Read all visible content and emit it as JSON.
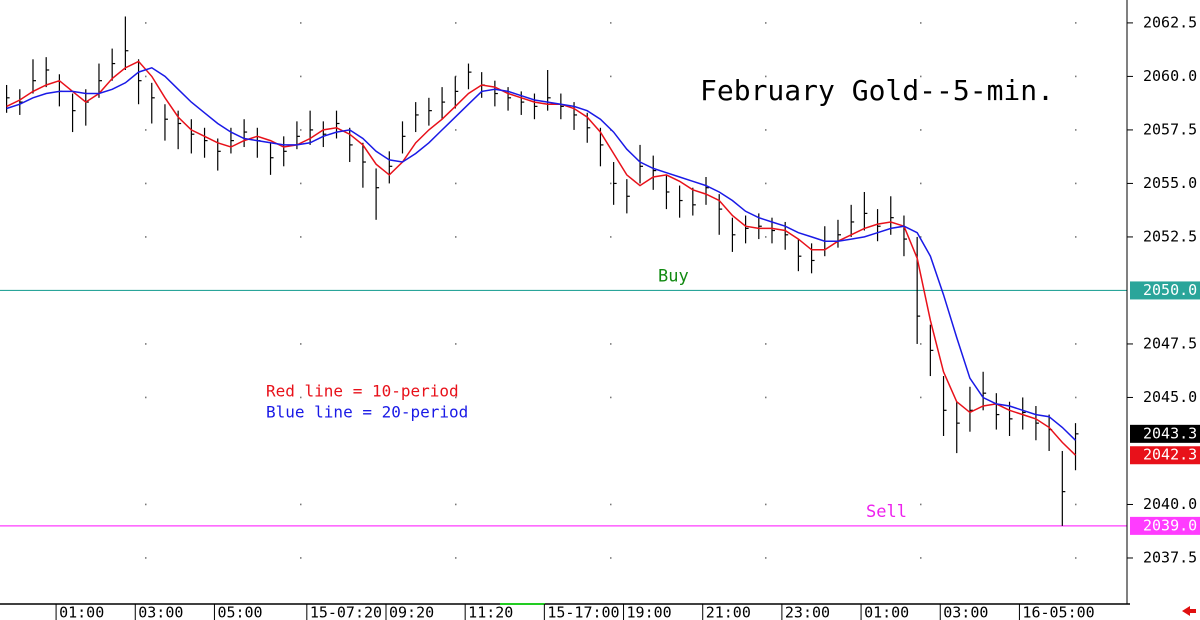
{
  "chart_data": {
    "type": "ohlc",
    "title": "February Gold--5-min.",
    "xlim": [
      0,
      341
    ],
    "ylim": [
      2035.35,
      2063.57
    ],
    "grid": true,
    "bar_color": "#000000",
    "xticks": [
      {
        "value": 17,
        "label": "01:00"
      },
      {
        "value": 41,
        "label": "03:00"
      },
      {
        "value": 65,
        "label": "05:00"
      },
      {
        "value": 93,
        "label": "15-07:20"
      },
      {
        "value": 117,
        "label": "09:20"
      },
      {
        "value": 141,
        "label": "11:20"
      },
      {
        "value": 165,
        "label": "15-17:00"
      },
      {
        "value": 189,
        "label": "19:00"
      },
      {
        "value": 213,
        "label": "21:00"
      },
      {
        "value": 237,
        "label": "23:00"
      },
      {
        "value": 261,
        "label": "01:00"
      },
      {
        "value": 285,
        "label": "03:00"
      },
      {
        "value": 309,
        "label": "16-05:00"
      }
    ],
    "yticks": [
      2062.5,
      {
        "value": 2060,
        "label": "2060.0"
      },
      2057.5,
      {
        "value": 2055,
        "label": "2055.0"
      },
      2052.5,
      2047.5,
      {
        "value": 2045,
        "label": "2045.0"
      },
      {
        "value": 2040,
        "label": "2040.0"
      },
      2037.5
    ],
    "x": [
      2,
      6,
      10,
      14,
      18,
      22,
      26,
      30,
      34,
      38,
      42,
      46,
      50,
      54,
      58,
      62,
      66,
      70,
      74,
      78,
      82,
      86,
      90,
      94,
      98,
      102,
      106,
      110,
      114,
      118,
      122,
      126,
      130,
      134,
      138,
      142,
      146,
      150,
      154,
      158,
      162,
      166,
      170,
      174,
      178,
      182,
      186,
      190,
      194,
      198,
      202,
      206,
      210,
      214,
      218,
      222,
      226,
      230,
      234,
      238,
      242,
      246,
      250,
      254,
      258,
      262,
      266,
      270,
      274,
      278,
      282,
      286,
      290,
      294,
      298,
      302,
      306,
      310,
      314,
      318,
      322,
      326
    ],
    "high": [
      2059.6,
      2059.4,
      2060.8,
      2060.9,
      2060.1,
      2059.2,
      2059.4,
      2060.6,
      2061.3,
      2062.8,
      2060.8,
      2059.7,
      2058.7,
      2058.4,
      2058.0,
      2057.6,
      2057.1,
      2057.6,
      2058.0,
      2057.6,
      2056.9,
      2057.2,
      2057.9,
      2058.4,
      2057.9,
      2058.4,
      2057.6,
      2056.9,
      2055.7,
      2056.5,
      2057.9,
      2058.8,
      2059.0,
      2059.5,
      2060.0,
      2060.6,
      2060.2,
      2059.8,
      2059.5,
      2059.3,
      2059.2,
      2060.3,
      2059.2,
      2058.8,
      2058.3,
      2057.6,
      2056.0,
      2055.2,
      2056.8,
      2056.3,
      2055.4,
      2054.9,
      2054.8,
      2055.3,
      2054.5,
      2053.4,
      2053.5,
      2053.6,
      2053.4,
      2053.2,
      2052.4,
      2052.2,
      2053.0,
      2053.3,
      2054.0,
      2054.6,
      2053.8,
      2054.4,
      2053.5,
      2052.5,
      2048.4,
      2046.0,
      2044.8,
      2045.5,
      2046.2,
      2045.2,
      2044.8,
      2045.0,
      2044.6,
      2044.2,
      2042.5,
      2043.8
    ],
    "low": [
      2058.3,
      2058.2,
      2059.2,
      2059.5,
      2058.6,
      2057.4,
      2057.7,
      2059.0,
      2059.8,
      2060.3,
      2058.7,
      2057.8,
      2057.0,
      2056.6,
      2056.4,
      2056.2,
      2055.6,
      2056.4,
      2056.7,
      2056.2,
      2055.4,
      2055.8,
      2056.6,
      2056.8,
      2056.7,
      2057.1,
      2056.0,
      2054.8,
      2053.3,
      2055.0,
      2056.4,
      2057.4,
      2057.7,
      2058.0,
      2058.5,
      2059.4,
      2059.0,
      2058.6,
      2058.4,
      2058.2,
      2058.0,
      2058.4,
      2058.0,
      2057.5,
      2056.9,
      2055.8,
      2054.0,
      2053.6,
      2055.0,
      2054.7,
      2053.8,
      2053.4,
      2053.5,
      2054.0,
      2052.6,
      2051.8,
      2052.2,
      2052.4,
      2052.2,
      2051.9,
      2050.9,
      2050.8,
      2051.6,
      2052.0,
      2052.5,
      2052.8,
      2052.3,
      2052.6,
      2051.6,
      2047.5,
      2046.0,
      2043.2,
      2042.4,
      2043.4,
      2044.4,
      2043.5,
      2043.2,
      2043.5,
      2043.0,
      2042.5,
      2039.0,
      2041.6
    ],
    "close": [
      2059.0,
      2058.8,
      2059.8,
      2060.3,
      2059.3,
      2058.4,
      2058.8,
      2059.8,
      2060.6,
      2061.2,
      2059.8,
      2059.0,
      2058.0,
      2057.8,
      2057.3,
      2057.0,
      2056.5,
      2057.0,
      2057.4,
      2057.0,
      2056.2,
      2056.5,
      2057.2,
      2057.5,
      2057.3,
      2057.8,
      2056.8,
      2056.0,
      2054.8,
      2055.8,
      2057.2,
      2058.2,
      2058.4,
      2058.8,
      2059.3,
      2060.2,
      2059.6,
      2059.2,
      2059.0,
      2058.8,
      2058.6,
      2059.0,
      2058.6,
      2058.2,
      2057.6,
      2056.8,
      2055.0,
      2054.4,
      2055.8,
      2055.6,
      2054.6,
      2054.2,
      2054.0,
      2054.8,
      2053.8,
      2052.6,
      2052.9,
      2053.0,
      2052.8,
      2052.6,
      2051.6,
      2051.4,
      2052.3,
      2052.6,
      2053.2,
      2053.6,
      2053.0,
      2053.4,
      2052.4,
      2048.8,
      2047.2,
      2044.4,
      2043.8,
      2044.4,
      2045.2,
      2044.2,
      2044.0,
      2044.3,
      2043.8,
      2043.5,
      2040.6,
      2043.3
    ],
    "series": [
      {
        "name": "Red line = 10-period",
        "color": "#e8111a",
        "values": [
          2058.6,
          2058.9,
          2059.3,
          2059.6,
          2059.8,
          2059.3,
          2058.8,
          2059.2,
          2059.9,
          2060.4,
          2060.7,
          2060.0,
          2059.0,
          2058.1,
          2057.5,
          2057.2,
          2056.9,
          2056.7,
          2057.0,
          2057.2,
          2057.0,
          2056.7,
          2056.8,
          2057.1,
          2057.5,
          2057.6,
          2057.3,
          2056.8,
          2055.9,
          2055.4,
          2056.0,
          2056.9,
          2057.5,
          2058.0,
          2058.6,
          2059.2,
          2059.6,
          2059.5,
          2059.2,
          2059.0,
          2058.8,
          2058.7,
          2058.7,
          2058.5,
          2058.1,
          2057.4,
          2056.4,
          2055.4,
          2054.9,
          2055.3,
          2055.4,
          2055.1,
          2054.7,
          2054.5,
          2054.2,
          2053.5,
          2053.0,
          2052.9,
          2052.9,
          2052.8,
          2052.4,
          2051.9,
          2051.9,
          2052.3,
          2052.6,
          2052.9,
          2053.1,
          2053.2,
          2053.0,
          2051.5,
          2048.6,
          2046.2,
          2044.8,
          2044.3,
          2044.6,
          2044.7,
          2044.4,
          2044.2,
          2044.0,
          2043.6,
          2042.9,
          2042.3
        ]
      },
      {
        "name": "Blue line = 20-period",
        "color": "#1a1ae6",
        "values": [
          2058.5,
          2058.7,
          2059.0,
          2059.2,
          2059.3,
          2059.3,
          2059.2,
          2059.2,
          2059.4,
          2059.7,
          2060.2,
          2060.4,
          2060.0,
          2059.4,
          2058.8,
          2058.3,
          2057.8,
          2057.4,
          2057.1,
          2057.0,
          2056.9,
          2056.8,
          2056.8,
          2056.9,
          2057.2,
          2057.4,
          2057.5,
          2057.1,
          2056.5,
          2056.1,
          2056.0,
          2056.4,
          2056.9,
          2057.5,
          2058.1,
          2058.7,
          2059.3,
          2059.4,
          2059.3,
          2059.1,
          2058.9,
          2058.8,
          2058.7,
          2058.6,
          2058.4,
          2058.0,
          2057.4,
          2056.6,
          2056.0,
          2055.7,
          2055.5,
          2055.3,
          2055.1,
          2054.9,
          2054.6,
          2054.2,
          2053.7,
          2053.4,
          2053.2,
          2053.0,
          2052.7,
          2052.5,
          2052.3,
          2052.3,
          2052.4,
          2052.5,
          2052.7,
          2052.9,
          2053.0,
          2052.7,
          2051.6,
          2049.8,
          2047.8,
          2045.9,
          2045.0,
          2044.7,
          2044.6,
          2044.4,
          2044.2,
          2044.1,
          2043.6,
          2043.0
        ]
      }
    ],
    "hlines": [
      {
        "value": 2050,
        "label": "2050.0",
        "color": "#2aa59a",
        "text": "Buy",
        "text_color": "#128a12"
      },
      {
        "value": 2039,
        "label": "2039.0",
        "color": "#ff3cff",
        "text": "Sell",
        "text_color": "#ee22ee"
      }
    ],
    "price_tags": [
      {
        "value": 2043.3,
        "color": "#000000"
      },
      {
        "value": 2042.3,
        "color": "#e8111a"
      }
    ]
  }
}
